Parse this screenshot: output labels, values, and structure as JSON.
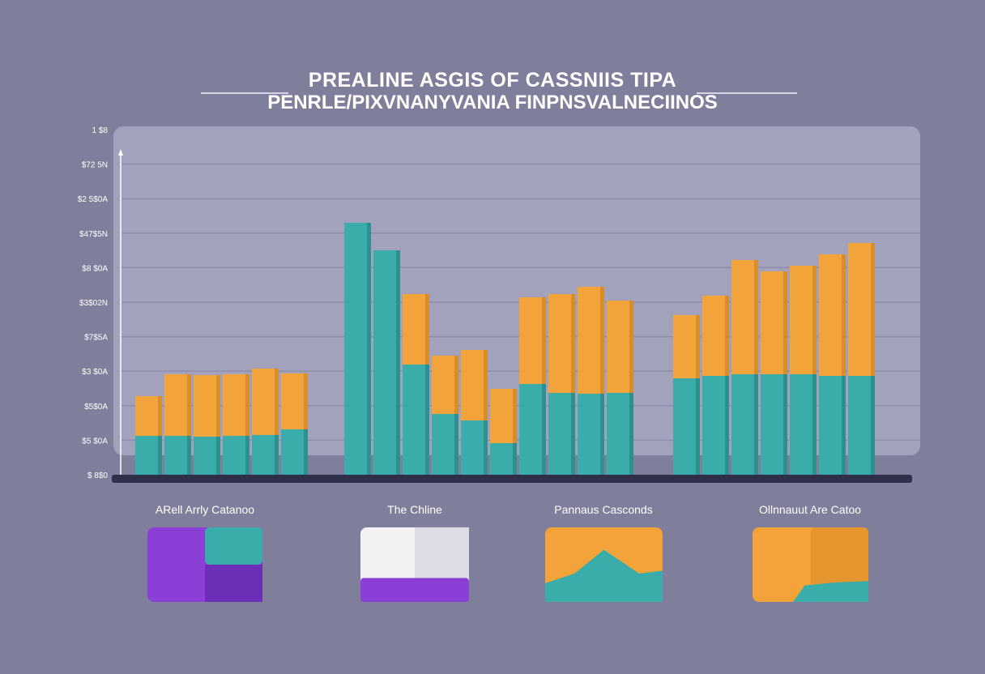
{
  "title": {
    "line1": "PREALINE ASGIS OF CASSNIIS TIPA",
    "line2": "PENRLE/PIXVNANYVANIA FINPNSVALNECIINOS"
  },
  "colors": {
    "background": "#7f7f9c",
    "panel": "#a2a2bd",
    "teal": "#3aacaa",
    "orange": "#f2a33a",
    "purple": "#8b3fd6",
    "white": "#f2f2f4",
    "axis": "#2f2f4a"
  },
  "chart_data": {
    "type": "bar",
    "stacked": true,
    "y_tick_labels": [
      "1 $8",
      "$72 5N",
      "$2 5$0A",
      "$47$5N",
      "$8 $0A",
      "$3$02N",
      "$7$5A",
      "$3 $0A",
      "$5$0A",
      "$5 $0A",
      "$ 8$0"
    ],
    "grid": true,
    "groups": [
      {
        "teal": [
          48,
          48,
          47,
          48,
          49,
          56
        ],
        "orange": [
          49,
          76,
          76,
          76,
          82,
          69
        ]
      },
      {
        "teal": [
          311,
          277,
          136,
          75,
          67,
          39
        ],
        "orange": [
          0,
          0,
          87,
          72,
          87,
          67
        ]
      },
      {
        "teal": [
          112,
          101,
          100,
          101
        ],
        "orange": [
          107,
          122,
          132,
          114
        ]
      },
      {
        "teal": [
          119,
          122,
          124,
          124,
          124,
          122,
          122
        ],
        "orange": [
          78,
          99,
          141,
          127,
          134,
          150,
          164
        ]
      }
    ]
  },
  "legend": [
    {
      "label": "ARell Arrly Catanoo",
      "colors": [
        "purple",
        "teal"
      ]
    },
    {
      "label": "The Chline",
      "colors": [
        "white",
        "purple"
      ]
    },
    {
      "label": "Pannaus Casconds",
      "colors": [
        "orange",
        "teal"
      ]
    },
    {
      "label": "Ollnnauut Are Catoo",
      "colors": [
        "orange",
        "teal"
      ]
    }
  ]
}
